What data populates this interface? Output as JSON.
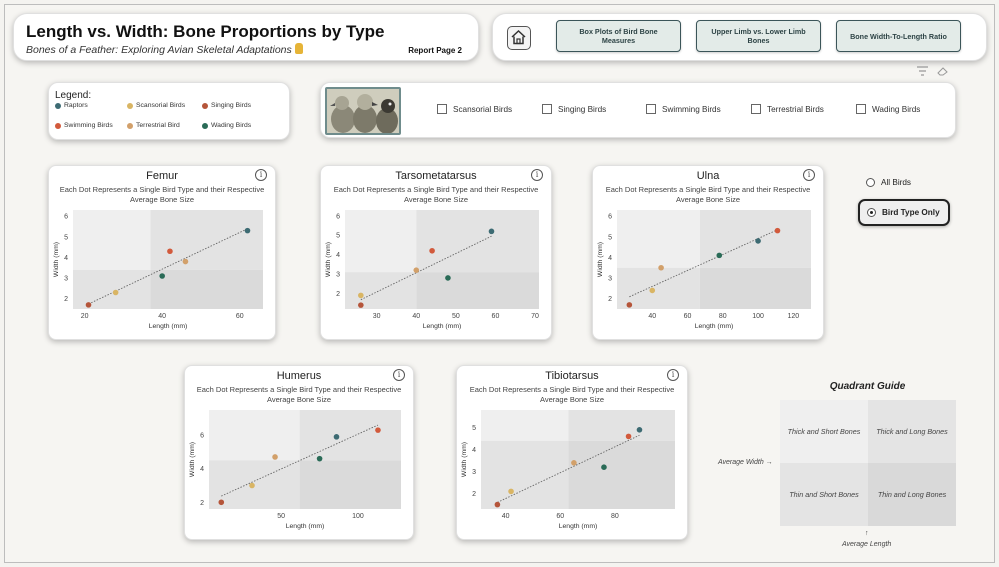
{
  "header": {
    "title": "Length vs. Width: Bone Proportions by Type",
    "subtitle": "Bones of a Feather: Exploring Avian Skeletal Adaptations",
    "report_page": "Report Page 2"
  },
  "nav": {
    "buttons": [
      {
        "label": "Box Plots of Bird Bone Measures"
      },
      {
        "label": "Upper Limb vs. Lower Limb Bones"
      },
      {
        "label": "Bone Width-To-Length Ratio"
      }
    ]
  },
  "legend": {
    "title": "Legend:",
    "items": [
      {
        "label": "Raptors",
        "color": "#3d6b73"
      },
      {
        "label": "Scansorial Birds",
        "color": "#d9b564"
      },
      {
        "label": "Singing Birds",
        "color": "#b5553a"
      },
      {
        "label": "Swimming Birds",
        "color": "#d25a3c"
      },
      {
        "label": "Terrestrial Bird",
        "color": "#d2a06a"
      },
      {
        "label": "Wading Birds",
        "color": "#2a6b57"
      }
    ]
  },
  "filters": {
    "items": [
      {
        "label": "Scansorial Birds",
        "checked": false
      },
      {
        "label": "Singing Birds",
        "checked": false
      },
      {
        "label": "Swimming Birds",
        "checked": false
      },
      {
        "label": "Terrestrial Birds",
        "checked": false
      },
      {
        "label": "Wading Birds",
        "checked": false
      }
    ]
  },
  "view_toggle": {
    "all_birds": "All Birds",
    "bird_type_only": "Bird Type Only",
    "selected": "Bird Type Only"
  },
  "chart_subtitle": "Each Dot Represents a Single Bird Type and their Respective Average Bone Size",
  "chart_data": [
    {
      "type": "scatter",
      "title": "Femur",
      "xlabel": "Length (mm)",
      "ylabel": "Width (mm)",
      "xlim": [
        17,
        66
      ],
      "ylim": [
        1.5,
        6.3
      ],
      "xticks": [
        20,
        40,
        60
      ],
      "yticks": [
        2,
        3,
        4,
        5,
        6
      ],
      "avg": [
        37,
        3.4
      ],
      "points": [
        {
          "x": 21,
          "y": 1.7,
          "group": "Singing Birds"
        },
        {
          "x": 28,
          "y": 2.3,
          "group": "Scansorial Birds"
        },
        {
          "x": 40,
          "y": 3.1,
          "group": "Wading Birds"
        },
        {
          "x": 42,
          "y": 4.3,
          "group": "Swimming Birds"
        },
        {
          "x": 46,
          "y": 3.8,
          "group": "Terrestrial Bird"
        },
        {
          "x": 62,
          "y": 5.3,
          "group": "Raptors"
        }
      ]
    },
    {
      "type": "scatter",
      "title": "Tarsometatarsus",
      "xlabel": "Length (mm)",
      "ylabel": "Width (mm)",
      "xlim": [
        22,
        71
      ],
      "ylim": [
        1.2,
        6.3
      ],
      "xticks": [
        30,
        40,
        50,
        60,
        70
      ],
      "yticks": [
        2,
        3,
        4,
        5,
        6
      ],
      "avg": [
        40,
        3.1
      ],
      "points": [
        {
          "x": 26,
          "y": 1.4,
          "group": "Singing Birds"
        },
        {
          "x": 26,
          "y": 1.9,
          "group": "Scansorial Birds"
        },
        {
          "x": 40,
          "y": 3.2,
          "group": "Terrestrial Bird"
        },
        {
          "x": 44,
          "y": 4.2,
          "group": "Swimming Birds"
        },
        {
          "x": 48,
          "y": 2.8,
          "group": "Wading Birds"
        },
        {
          "x": 59,
          "y": 5.2,
          "group": "Raptors"
        }
      ]
    },
    {
      "type": "scatter",
      "title": "Ulna",
      "xlabel": "Length (mm)",
      "ylabel": "Width (mm)",
      "xlim": [
        20,
        130
      ],
      "ylim": [
        1.5,
        6.3
      ],
      "xticks": [
        40,
        60,
        80,
        100,
        120
      ],
      "yticks": [
        2,
        3,
        4,
        5,
        6
      ],
      "avg": [
        67,
        3.5
      ],
      "points": [
        {
          "x": 27,
          "y": 1.7,
          "group": "Singing Birds"
        },
        {
          "x": 40,
          "y": 2.4,
          "group": "Scansorial Birds"
        },
        {
          "x": 45,
          "y": 3.5,
          "group": "Terrestrial Bird"
        },
        {
          "x": 78,
          "y": 4.1,
          "group": "Wading Birds"
        },
        {
          "x": 100,
          "y": 4.8,
          "group": "Raptors"
        },
        {
          "x": 111,
          "y": 5.3,
          "group": "Swimming Birds"
        }
      ]
    },
    {
      "type": "scatter",
      "title": "Humerus",
      "xlabel": "Length (mm)",
      "ylabel": "Width (mm)",
      "xlim": [
        3,
        128
      ],
      "ylim": [
        1.6,
        7.5
      ],
      "xticks": [
        50,
        100
      ],
      "yticks": [
        2,
        4,
        6
      ],
      "avg": [
        62,
        4.5
      ],
      "points": [
        {
          "x": 11,
          "y": 2.0,
          "group": "Singing Birds"
        },
        {
          "x": 31,
          "y": 3.0,
          "group": "Scansorial Birds"
        },
        {
          "x": 46,
          "y": 4.7,
          "group": "Terrestrial Bird"
        },
        {
          "x": 75,
          "y": 4.6,
          "group": "Wading Birds"
        },
        {
          "x": 86,
          "y": 5.9,
          "group": "Raptors"
        },
        {
          "x": 113,
          "y": 6.3,
          "group": "Swimming Birds"
        }
      ]
    },
    {
      "type": "scatter",
      "title": "Tibiotarsus",
      "xlabel": "Length (mm)",
      "ylabel": "Width (mm)",
      "xlim": [
        31,
        102
      ],
      "ylim": [
        1.3,
        5.8
      ],
      "xticks": [
        40,
        60,
        80
      ],
      "yticks": [
        2,
        3,
        4,
        5
      ],
      "avg": [
        63,
        4.4
      ],
      "points": [
        {
          "x": 37,
          "y": 1.5,
          "group": "Singing Birds"
        },
        {
          "x": 42,
          "y": 2.1,
          "group": "Scansorial Birds"
        },
        {
          "x": 65,
          "y": 3.4,
          "group": "Terrestrial Bird"
        },
        {
          "x": 76,
          "y": 3.2,
          "group": "Wading Birds"
        },
        {
          "x": 85,
          "y": 4.6,
          "group": "Swimming Birds"
        },
        {
          "x": 89,
          "y": 4.9,
          "group": "Raptors"
        }
      ]
    }
  ],
  "quadrant_guide": {
    "title": "Quadrant Guide",
    "top_left": "Thick and Short Bones",
    "top_right": "Thick and Long Bones",
    "bottom_left": "Thin and Short Bones",
    "bottom_right": "Thin and Long Bones",
    "avg_width": "Average Width →",
    "avg_length_arrow": "↑",
    "avg_length": "Average Length"
  }
}
